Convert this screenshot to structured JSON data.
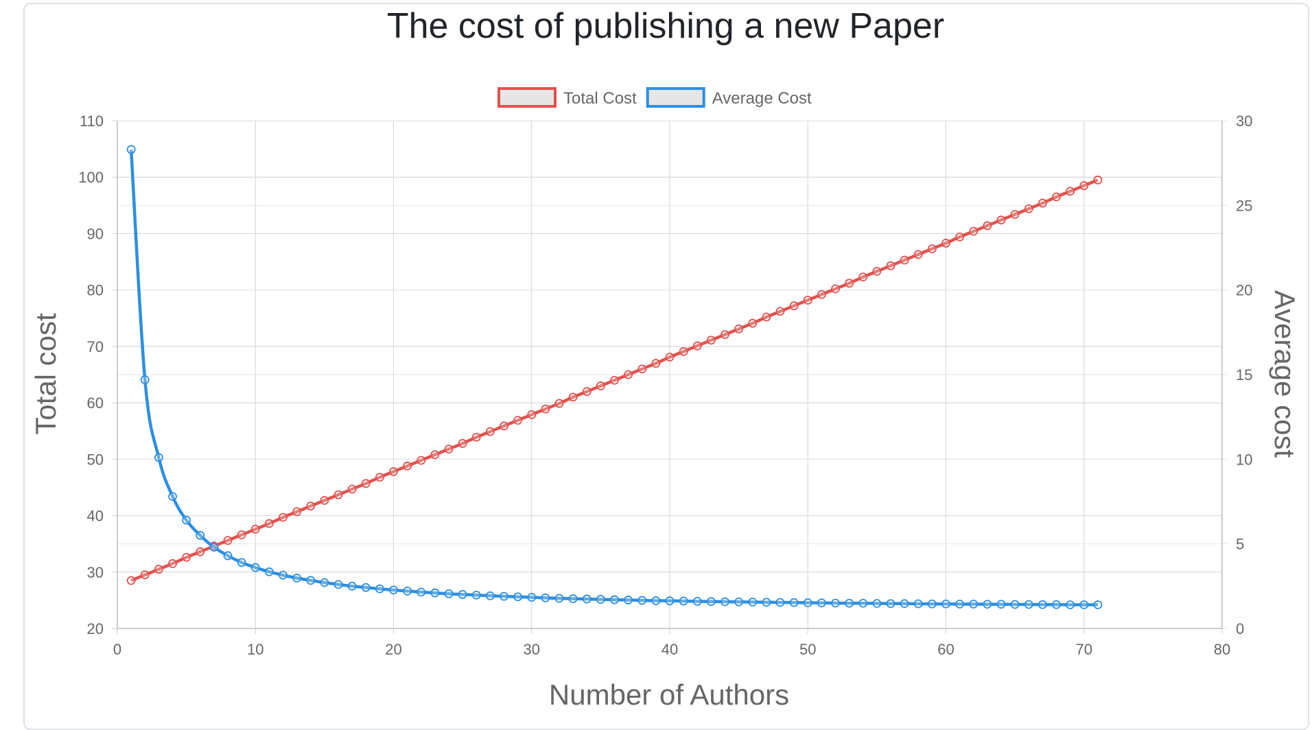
{
  "chart_data": {
    "type": "line",
    "title": "The cost of publishing a new Paper",
    "xlabel": "Number of Authors",
    "ylabel_left": "Total cost",
    "ylabel_right": "Average cost",
    "xlim": [
      0,
      80
    ],
    "ylim_left": [
      20,
      110
    ],
    "ylim_right": [
      0,
      30
    ],
    "x_ticks": [
      0,
      10,
      20,
      30,
      40,
      50,
      60,
      70,
      80
    ],
    "y_left_ticks": [
      20,
      30,
      40,
      50,
      60,
      70,
      80,
      90,
      100,
      110
    ],
    "y_right_ticks": [
      0,
      5,
      10,
      15,
      20,
      25,
      30
    ],
    "grid": true,
    "legend_position": "top",
    "x": [
      1,
      2,
      3,
      4,
      5,
      6,
      7,
      8,
      9,
      10,
      11,
      12,
      13,
      14,
      15,
      16,
      17,
      18,
      19,
      20,
      21,
      22,
      23,
      24,
      25,
      26,
      27,
      28,
      29,
      30,
      31,
      32,
      33,
      34,
      35,
      36,
      37,
      38,
      39,
      40,
      41,
      42,
      43,
      44,
      45,
      46,
      47,
      48,
      49,
      50,
      51,
      52,
      53,
      54,
      55,
      56,
      57,
      58,
      59,
      60,
      61,
      62,
      63,
      64,
      65,
      66,
      67,
      68,
      69,
      70,
      71
    ],
    "series": [
      {
        "name": "Total Cost",
        "axis": "left",
        "color": "#e0524e",
        "values": [
          28.5,
          29.5,
          30.5,
          31.5,
          32.6,
          33.6,
          34.6,
          35.6,
          36.6,
          37.6,
          38.6,
          39.7,
          40.7,
          41.7,
          42.7,
          43.7,
          44.7,
          45.7,
          46.8,
          47.8,
          48.8,
          49.8,
          50.8,
          51.8,
          52.8,
          53.9,
          54.9,
          55.9,
          56.9,
          57.9,
          58.9,
          59.9,
          61.0,
          62.0,
          63.0,
          64.0,
          65.0,
          66.0,
          67.0,
          68.1,
          69.1,
          70.1,
          71.1,
          72.1,
          73.1,
          74.1,
          75.2,
          76.2,
          77.2,
          78.2,
          79.2,
          80.2,
          81.2,
          82.3,
          83.3,
          84.3,
          85.3,
          86.3,
          87.3,
          88.3,
          89.4,
          90.4,
          91.4,
          92.4,
          93.4,
          94.4,
          95.4,
          96.5,
          97.5,
          98.5,
          99.5
        ]
      },
      {
        "name": "Average Cost",
        "axis": "right",
        "color": "#2d8fe0",
        "values": [
          28.3,
          14.7,
          10.1,
          7.8,
          6.4,
          5.5,
          4.8,
          4.3,
          3.9,
          3.6,
          3.35,
          3.15,
          2.98,
          2.84,
          2.71,
          2.6,
          2.5,
          2.42,
          2.34,
          2.27,
          2.21,
          2.15,
          2.1,
          2.05,
          2.01,
          1.97,
          1.93,
          1.9,
          1.87,
          1.84,
          1.81,
          1.78,
          1.76,
          1.74,
          1.72,
          1.7,
          1.68,
          1.66,
          1.64,
          1.63,
          1.62,
          1.6,
          1.59,
          1.58,
          1.57,
          1.56,
          1.55,
          1.54,
          1.53,
          1.52,
          1.51,
          1.5,
          1.49,
          1.49,
          1.48,
          1.47,
          1.47,
          1.46,
          1.45,
          1.45,
          1.44,
          1.44,
          1.43,
          1.43,
          1.42,
          1.42,
          1.41,
          1.41,
          1.4,
          1.4,
          1.4
        ]
      }
    ]
  }
}
